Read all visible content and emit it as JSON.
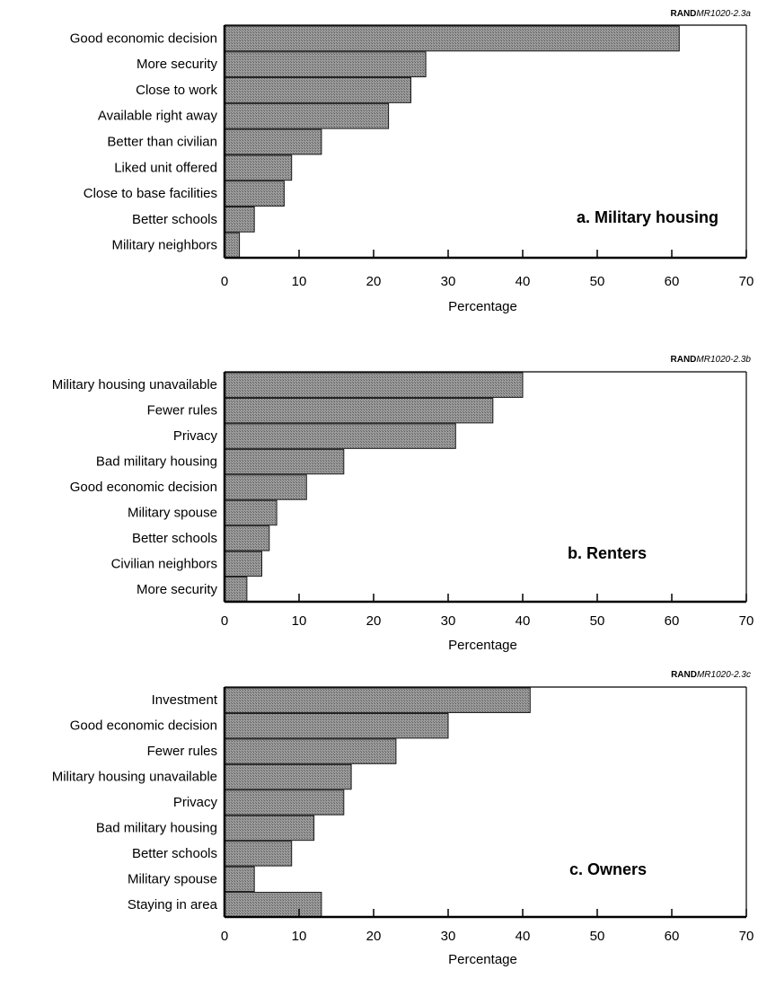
{
  "colors": {
    "bar_fill": "#8c8c8c",
    "bar_stroke": "#1a1a1a",
    "axis": "#000000"
  },
  "chart_data": [
    {
      "type": "bar",
      "orientation": "horizontal",
      "title": "a.  Military housing",
      "source_prefix": "RAND",
      "source_code": "MR1020-2.3a",
      "xlabel": "Percentage",
      "ylabel": "",
      "xlim": [
        0,
        70
      ],
      "xticks": [
        0,
        10,
        20,
        30,
        40,
        50,
        60,
        70
      ],
      "grid": false,
      "categories": [
        "Good economic decision",
        "More security",
        "Close to work",
        "Available right away",
        "Better than civilian",
        "Liked unit offered",
        "Close to base facilities",
        "Better schools",
        "Military neighbors"
      ],
      "values": [
        61,
        27,
        25,
        22,
        13,
        9,
        8,
        4,
        2
      ]
    },
    {
      "type": "bar",
      "orientation": "horizontal",
      "title": "b.  Renters",
      "source_prefix": "RAND",
      "source_code": "MR1020-2.3b",
      "xlabel": "Percentage",
      "ylabel": "",
      "xlim": [
        0,
        70
      ],
      "xticks": [
        0,
        10,
        20,
        30,
        40,
        50,
        60,
        70
      ],
      "grid": false,
      "categories": [
        "Military housing unavailable",
        "Fewer rules",
        "Privacy",
        "Bad military housing",
        "Good economic decision",
        "Military spouse",
        "Better schools",
        "Civilian neighbors",
        "More security"
      ],
      "values": [
        40,
        36,
        31,
        16,
        11,
        7,
        6,
        5,
        3
      ]
    },
    {
      "type": "bar",
      "orientation": "horizontal",
      "title": "c.  Owners",
      "source_prefix": "RAND",
      "source_code": "MR1020-2.3c",
      "xlabel": "Percentage",
      "ylabel": "",
      "xlim": [
        0,
        70
      ],
      "xticks": [
        0,
        10,
        20,
        30,
        40,
        50,
        60,
        70
      ],
      "grid": false,
      "categories": [
        "Investment",
        "Good economic decision",
        "Fewer rules",
        "Military housing unavailable",
        "Privacy",
        "Bad military housing",
        "Better schools",
        "Military spouse",
        "Staying in area"
      ],
      "values": [
        41,
        30,
        23,
        17,
        16,
        12,
        9,
        4,
        13
      ]
    }
  ]
}
